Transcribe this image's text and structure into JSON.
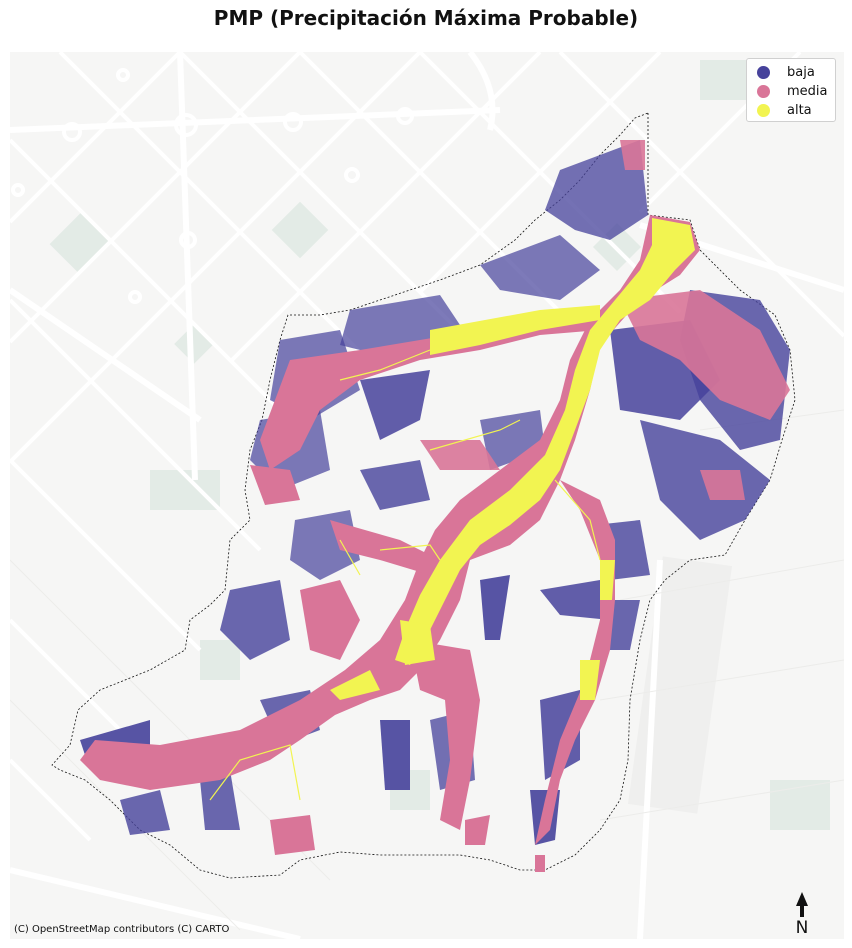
{
  "title": "PMP (Precipitación Máxima Probable)",
  "legend": {
    "items": [
      {
        "label": "baja",
        "color": "#46429b"
      },
      {
        "label": "media",
        "color": "#d97598"
      },
      {
        "label": "alta",
        "color": "#f2f451"
      }
    ]
  },
  "map": {
    "basemap_color": "#f7f7f6",
    "road_color": "#ffffff",
    "outline_color": "#111111"
  },
  "attribution": "(C) OpenStreetMap contributors (C) CARTO",
  "north_arrow": {
    "label": "N"
  }
}
